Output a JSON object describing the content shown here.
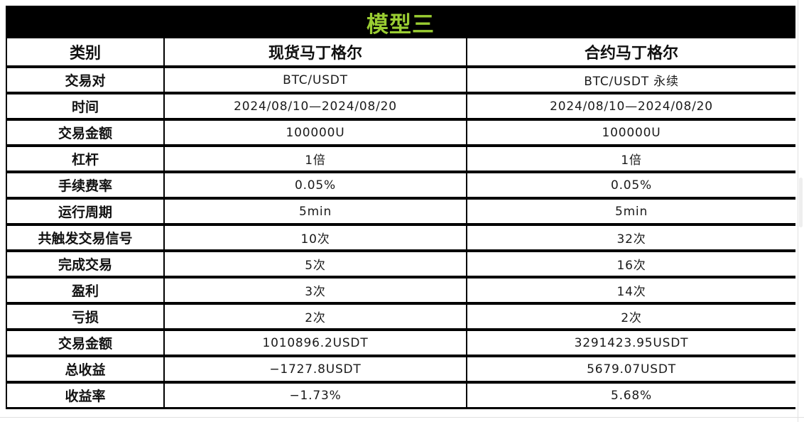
{
  "theme": {
    "accent_green": "#9ACD32",
    "header_bg": "#000000",
    "cell_bg": "#ffffff",
    "text_color": "#111111"
  },
  "chart_data": {
    "type": "table",
    "title": "模型三",
    "columns": [
      "类别",
      "现货马丁格尔",
      "合约马丁格尔"
    ],
    "rows": [
      [
        "交易对",
        "BTC/USDT",
        "BTC/USDT 永续"
      ],
      [
        "时间",
        "2024/08/10—2024/08/20",
        "2024/08/10—2024/08/20"
      ],
      [
        "交易金额",
        "100000U",
        "100000U"
      ],
      [
        "杠杆",
        "1倍",
        "1倍"
      ],
      [
        "手续费率",
        "0.05%",
        "0.05%"
      ],
      [
        "运行周期",
        "5min",
        "5min"
      ],
      [
        "共触发交易信号",
        "10次",
        "32次"
      ],
      [
        "完成交易",
        "5次",
        "16次"
      ],
      [
        "盈利",
        "3次",
        "14次"
      ],
      [
        "亏损",
        "2次",
        "2次"
      ],
      [
        "交易金额",
        "1010896.2USDT",
        "3291423.95USDT"
      ],
      [
        "总收益",
        "−1727.8USDT",
        "5679.07USDT"
      ],
      [
        "收益率",
        "−1.73%",
        "5.68%"
      ]
    ]
  }
}
